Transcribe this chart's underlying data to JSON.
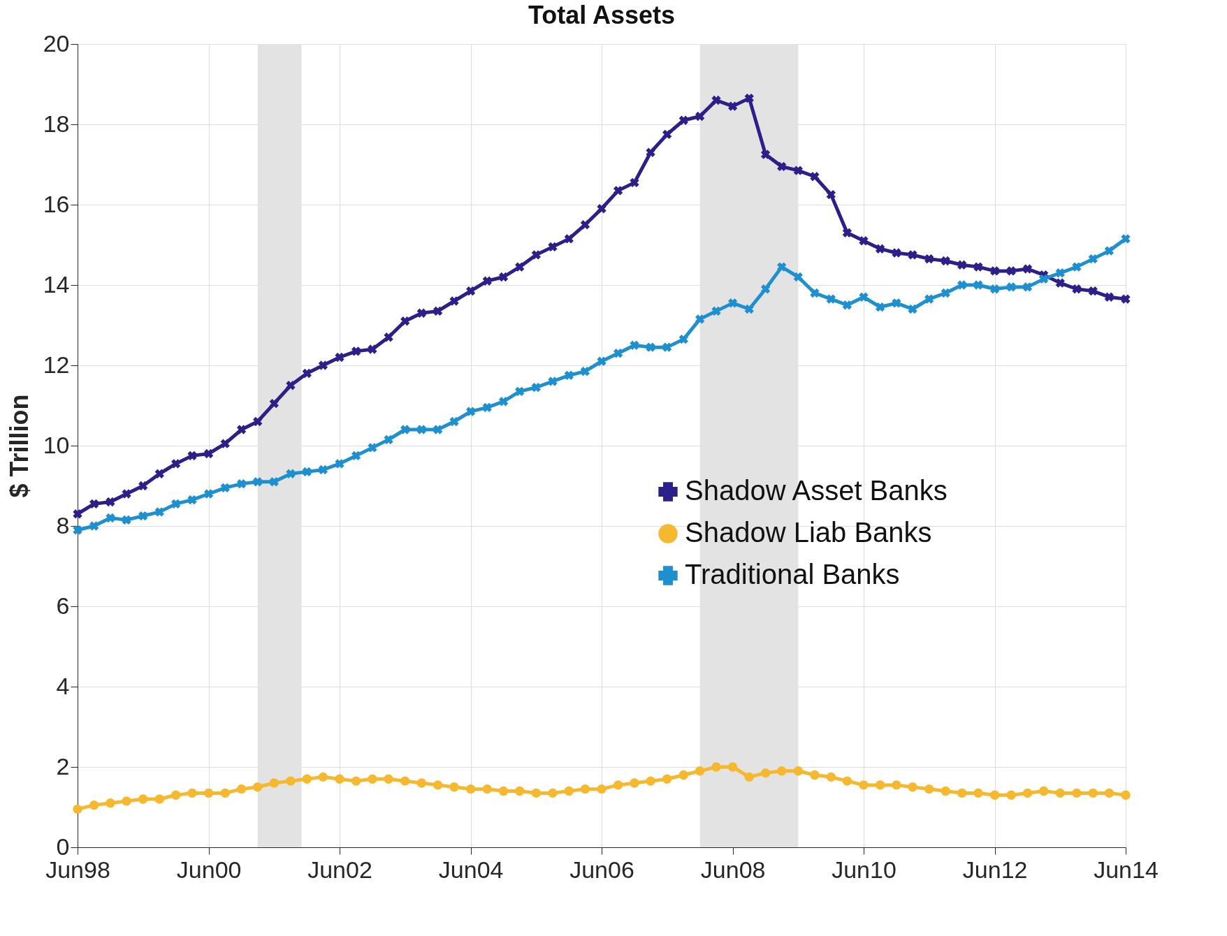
{
  "chart_data": {
    "type": "line",
    "title": "Total Assets",
    "ylabel": "$ Trillion",
    "x": [
      "1998-06",
      "1998-09",
      "1998-12",
      "1999-03",
      "1999-06",
      "1999-09",
      "1999-12",
      "2000-03",
      "2000-06",
      "2000-09",
      "2000-12",
      "2001-03",
      "2001-06",
      "2001-09",
      "2001-12",
      "2002-03",
      "2002-06",
      "2002-09",
      "2002-12",
      "2003-03",
      "2003-06",
      "2003-09",
      "2003-12",
      "2004-03",
      "2004-06",
      "2004-09",
      "2004-12",
      "2005-03",
      "2005-06",
      "2005-09",
      "2005-12",
      "2006-03",
      "2006-06",
      "2006-09",
      "2006-12",
      "2007-03",
      "2007-06",
      "2007-09",
      "2007-12",
      "2008-03",
      "2008-06",
      "2008-09",
      "2008-12",
      "2009-03",
      "2009-06",
      "2009-09",
      "2009-12",
      "2010-03",
      "2010-06",
      "2010-09",
      "2010-12",
      "2011-03",
      "2011-06",
      "2011-09",
      "2011-12",
      "2012-03",
      "2012-06",
      "2012-09",
      "2012-12",
      "2013-03",
      "2013-06",
      "2013-09",
      "2013-12",
      "2014-03",
      "2014-06"
    ],
    "series": [
      {
        "name": "Shadow Asset Banks",
        "color": "#2c1f8a",
        "marker": "cross",
        "values": [
          8.3,
          8.55,
          8.6,
          8.8,
          9.0,
          9.3,
          9.55,
          9.75,
          9.8,
          10.05,
          10.4,
          10.6,
          11.05,
          11.5,
          11.8,
          12.0,
          12.2,
          12.35,
          12.4,
          12.7,
          13.1,
          13.3,
          13.35,
          13.6,
          13.85,
          14.1,
          14.2,
          14.45,
          14.75,
          14.95,
          15.15,
          15.5,
          15.9,
          16.35,
          16.55,
          17.3,
          17.75,
          18.1,
          18.2,
          18.6,
          18.45,
          18.65,
          17.25,
          16.95,
          16.85,
          16.7,
          16.25,
          15.3,
          15.1,
          14.9,
          14.8,
          14.75,
          14.65,
          14.6,
          14.5,
          14.45,
          14.35,
          14.35,
          14.4,
          14.25,
          14.05,
          13.9,
          13.85,
          13.7,
          13.65
        ]
      },
      {
        "name": "Shadow Liab Banks",
        "color": "#f5b82e",
        "marker": "circle",
        "values": [
          0.95,
          1.05,
          1.1,
          1.15,
          1.2,
          1.2,
          1.3,
          1.35,
          1.35,
          1.35,
          1.45,
          1.5,
          1.6,
          1.65,
          1.7,
          1.75,
          1.7,
          1.65,
          1.7,
          1.7,
          1.65,
          1.6,
          1.55,
          1.5,
          1.45,
          1.45,
          1.4,
          1.4,
          1.35,
          1.35,
          1.4,
          1.45,
          1.45,
          1.55,
          1.6,
          1.65,
          1.7,
          1.8,
          1.9,
          2.0,
          2.0,
          1.75,
          1.85,
          1.9,
          1.9,
          1.8,
          1.75,
          1.65,
          1.55,
          1.55,
          1.55,
          1.5,
          1.45,
          1.4,
          1.35,
          1.35,
          1.3,
          1.3,
          1.35,
          1.4,
          1.35,
          1.35,
          1.35,
          1.35,
          1.3
        ]
      },
      {
        "name": "Traditional Banks",
        "color": "#1e90d0",
        "marker": "cross",
        "values": [
          7.9,
          8.0,
          8.2,
          8.15,
          8.25,
          8.35,
          8.55,
          8.65,
          8.8,
          8.95,
          9.05,
          9.1,
          9.1,
          9.3,
          9.35,
          9.4,
          9.55,
          9.75,
          9.95,
          10.15,
          10.4,
          10.4,
          10.4,
          10.6,
          10.85,
          10.95,
          11.1,
          11.35,
          11.45,
          11.6,
          11.75,
          11.85,
          12.1,
          12.3,
          12.5,
          12.45,
          12.45,
          12.65,
          13.15,
          13.35,
          13.55,
          13.4,
          13.9,
          14.45,
          14.2,
          13.8,
          13.65,
          13.5,
          13.7,
          13.45,
          13.55,
          13.4,
          13.65,
          13.8,
          14.0,
          14.0,
          13.9,
          13.95,
          13.95,
          14.15,
          14.3,
          14.45,
          14.65,
          14.85,
          15.15
        ]
      }
    ],
    "xlim": [
      "1998-06",
      "2014-06"
    ],
    "xticks": [
      {
        "value": "1998-06",
        "label": "Jun98"
      },
      {
        "value": "2000-06",
        "label": "Jun00"
      },
      {
        "value": "2002-06",
        "label": "Jun02"
      },
      {
        "value": "2004-06",
        "label": "Jun04"
      },
      {
        "value": "2006-06",
        "label": "Jun06"
      },
      {
        "value": "2008-06",
        "label": "Jun08"
      },
      {
        "value": "2010-06",
        "label": "Jun10"
      },
      {
        "value": "2012-06",
        "label": "Jun12"
      },
      {
        "value": "2014-06",
        "label": "Jun14"
      }
    ],
    "ylim": [
      0,
      20
    ],
    "yticks": [
      0,
      2,
      4,
      6,
      8,
      10,
      12,
      14,
      16,
      18,
      20
    ],
    "bands": [
      {
        "axis": "x",
        "from": "2001-03",
        "to": "2001-11",
        "color": "#e3e3e3"
      },
      {
        "axis": "x",
        "from": "2007-12",
        "to": "2009-06",
        "color": "#e3e3e3"
      }
    ],
    "grid": true,
    "legend": "right",
    "line_style": "solid"
  }
}
